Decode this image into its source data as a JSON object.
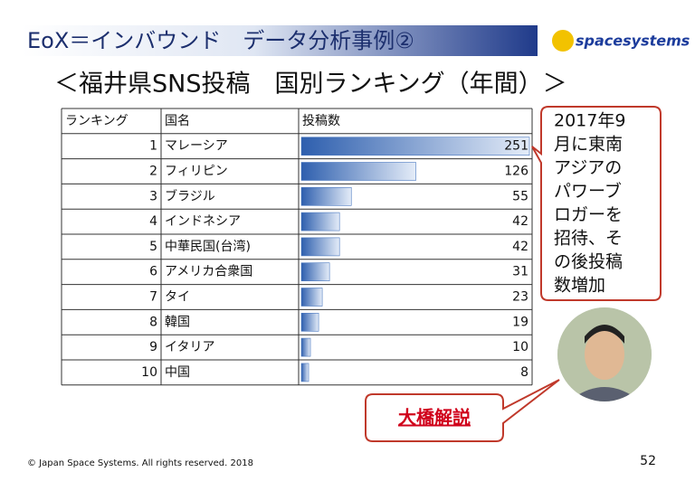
{
  "header": {
    "title": "EoX＝インバウンド　データ分析事例②",
    "logo": "spacesystems"
  },
  "subtitle": "＜福井県SNS投稿　国別ランキング（年間）＞",
  "table": {
    "columns": [
      "ランキング",
      "国名",
      "投稿数"
    ],
    "rows": [
      [
        1,
        "マレーシア",
        251
      ],
      [
        2,
        "フィリピン",
        126
      ],
      [
        3,
        "ブラジル",
        55
      ],
      [
        4,
        "インドネシア",
        42
      ],
      [
        5,
        "中華民国(台湾)",
        42
      ],
      [
        6,
        "アメリカ合衆国",
        31
      ],
      [
        7,
        "タイ",
        23
      ],
      [
        8,
        "韓国",
        19
      ],
      [
        9,
        "イタリア",
        10
      ],
      [
        10,
        "中国",
        8
      ]
    ]
  },
  "callout": {
    "lines": [
      "2017年9",
      "月に東南",
      "アジアの",
      "パワーブ",
      "ロガーを",
      "招待、そ",
      "の後投稿",
      "数増加"
    ]
  },
  "speech": "大橋解説",
  "footer": {
    "copyright": "© Japan Space Systems. All rights reserved. 2018",
    "page": "52"
  }
}
